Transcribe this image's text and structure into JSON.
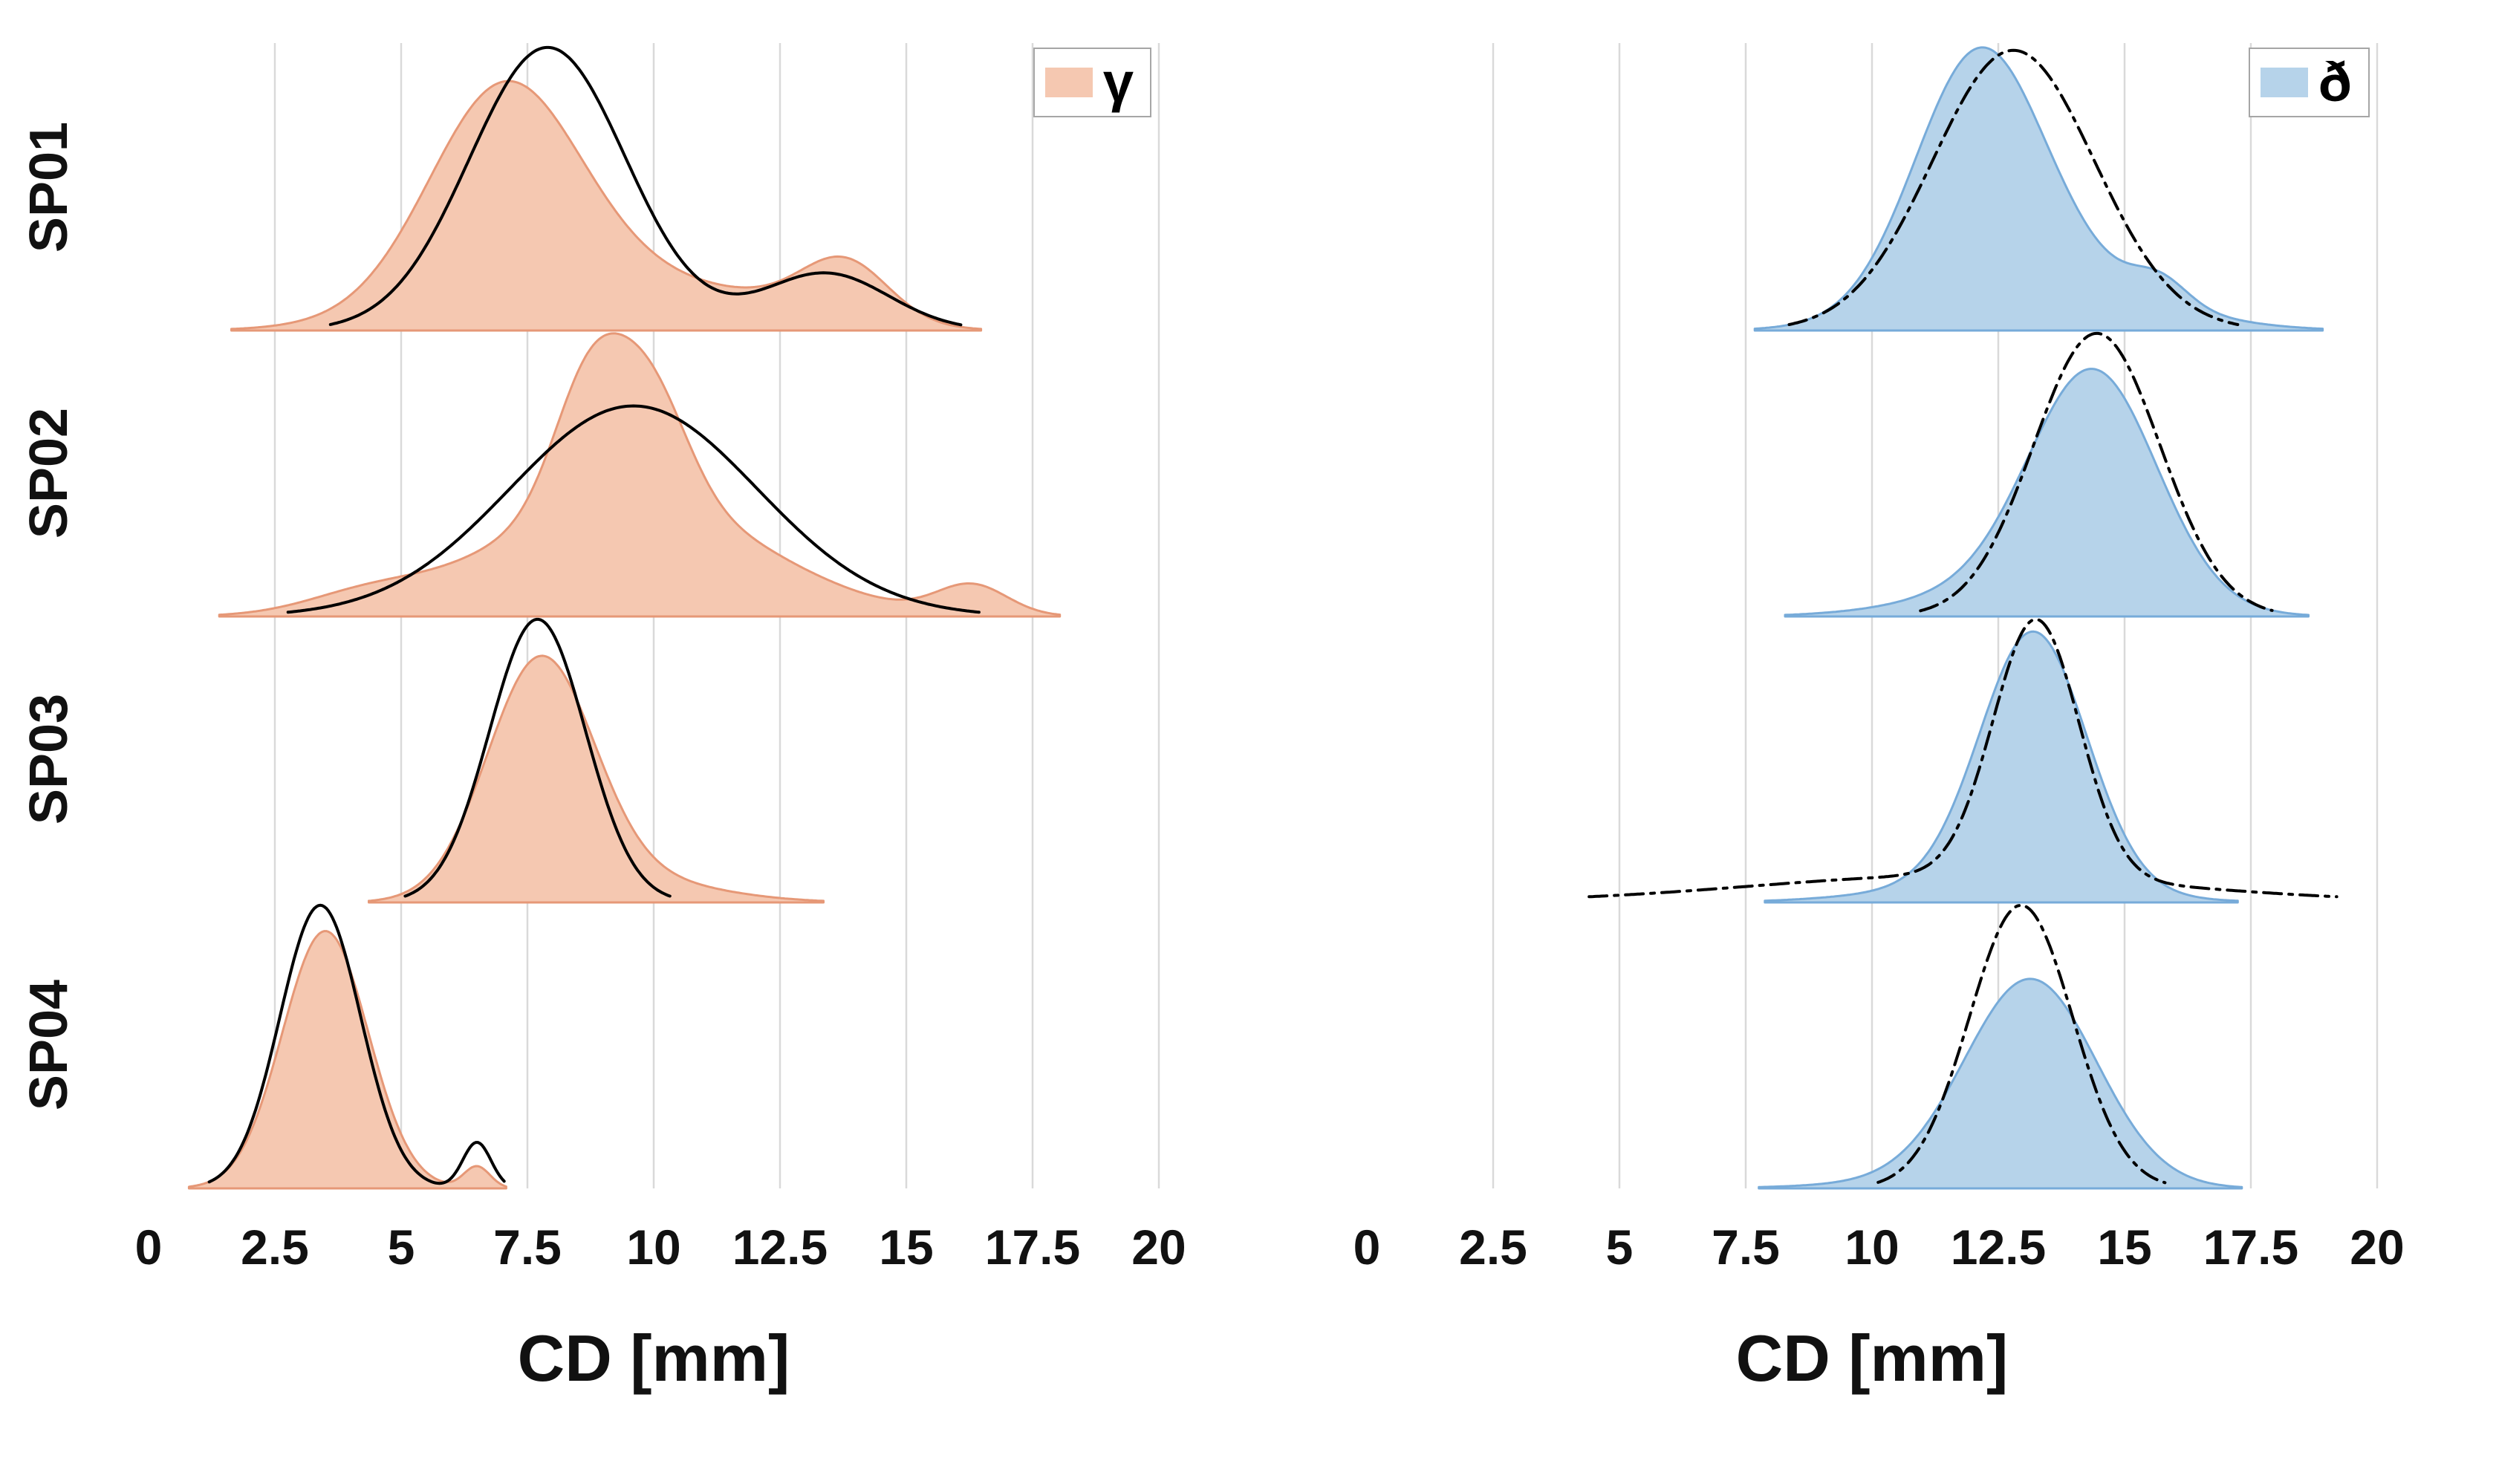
{
  "chart_data": {
    "type": "area",
    "subtype": "ridgeline-kde-with-gaussian-fits",
    "xlabel": "CD [mm]",
    "x_range": [
      0,
      20
    ],
    "x_ticks": [
      0,
      2.5,
      5,
      7.5,
      10,
      12.5,
      15,
      17.5,
      20
    ],
    "grid": true,
    "grid_color": "#d9d9d9",
    "text_color": "#111111",
    "row_labels": [
      "SP01",
      "SP02",
      "SP03",
      "SP04"
    ],
    "panels": [
      {
        "name": "gamma-panel",
        "legend": "γ",
        "legend_position": "top-right",
        "fill": "#F5C8B1",
        "edge": "#E69877",
        "fit_color": "#000000",
        "fit_style": "solid",
        "rows": [
          {
            "label": "SP01",
            "kde": [
              {
                "mean": 7.0,
                "sd": 1.45,
                "w": 0.55
              },
              {
                "mean": 8.3,
                "sd": 2.4,
                "w": 0.3
              },
              {
                "mean": 13.8,
                "sd": 0.85,
                "w": 0.09
              },
              {
                "mean": 12.6,
                "sd": 1.6,
                "w": 0.06
              }
            ],
            "fit": [
              {
                "mean": 7.9,
                "sd": 1.55,
                "w": 0.86
              },
              {
                "mean": 13.4,
                "sd": 1.25,
                "w": 0.14
              }
            ]
          },
          {
            "label": "SP02",
            "kde": [
              {
                "mean": 9.5,
                "sd": 2.55,
                "w": 0.6
              },
              {
                "mean": 8.7,
                "sd": 0.7,
                "w": 0.16
              },
              {
                "mean": 9.9,
                "sd": 0.75,
                "w": 0.16
              },
              {
                "mean": 16.3,
                "sd": 0.7,
                "w": 0.04
              },
              {
                "mean": 4.3,
                "sd": 1.2,
                "w": 0.04
              }
            ],
            "fit": [
              {
                "mean": 9.6,
                "sd": 2.45,
                "w": 1.0
              }
            ]
          },
          {
            "label": "SP03",
            "kde": [
              {
                "mean": 7.75,
                "sd": 1.05,
                "w": 0.86
              },
              {
                "mean": 9.4,
                "sd": 1.7,
                "w": 0.14
              }
            ],
            "fit": [
              {
                "mean": 7.7,
                "sd": 0.95,
                "w": 0.95
              }
            ]
          },
          {
            "label": "SP04",
            "kde": [
              {
                "mean": 3.5,
                "sd": 0.85,
                "w": 0.85
              },
              {
                "mean": 6.5,
                "sd": 0.26,
                "w": 0.022
              }
            ],
            "fit": [
              {
                "mean": 3.4,
                "sd": 0.8,
                "w": 0.88
              },
              {
                "mean": 6.5,
                "sd": 0.28,
                "w": 0.05
              }
            ]
          }
        ]
      },
      {
        "name": "eth-panel",
        "legend": "ð",
        "legend_position": "top-right",
        "fill": "#B6D3EA",
        "edge": "#77ABD9",
        "fit_color": "#000000",
        "fit_style": "dashdot",
        "rows": [
          {
            "label": "SP01",
            "kde": [
              {
                "mean": 12.1,
                "sd": 1.25,
                "w": 0.66
              },
              {
                "mean": 13.4,
                "sd": 2.1,
                "w": 0.26
              },
              {
                "mean": 15.7,
                "sd": 0.55,
                "w": 0.03
              }
            ],
            "fit": [
              {
                "mean": 12.8,
                "sd": 1.6,
                "w": 1.0
              }
            ]
          },
          {
            "label": "SP02",
            "kde": [
              {
                "mean": 14.4,
                "sd": 1.25,
                "w": 0.78
              },
              {
                "mean": 13.2,
                "sd": 2.0,
                "w": 0.18
              }
            ],
            "fit": [
              {
                "mean": 14.45,
                "sd": 1.25,
                "w": 1.0
              }
            ]
          },
          {
            "label": "SP03",
            "kde": [
              {
                "mean": 13.2,
                "sd": 1.05,
                "w": 0.8
              },
              {
                "mean": 12.5,
                "sd": 2.1,
                "w": 0.12
              }
            ],
            "fit": [
              {
                "mean": 13.25,
                "sd": 0.85,
                "w": 0.66
              },
              {
                "mean": 11.8,
                "sd": 4.2,
                "w": 0.34
              }
            ]
          },
          {
            "label": "SP04",
            "kde": [
              {
                "mean": 13.15,
                "sd": 1.3,
                "w": 0.92
              },
              {
                "mean": 11.5,
                "sd": 2.0,
                "w": 0.05
              }
            ],
            "fit": [
              {
                "mean": 12.95,
                "sd": 1.02,
                "w": 1.0
              }
            ]
          }
        ]
      }
    ]
  }
}
